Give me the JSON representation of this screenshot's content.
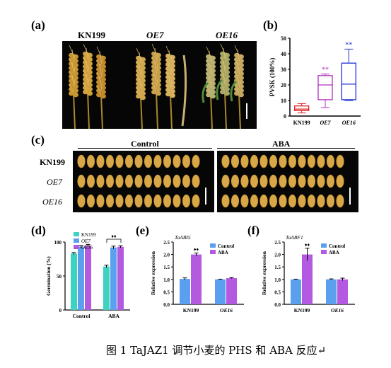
{
  "panels": {
    "a": {
      "label": "(a)",
      "headers": [
        "KN199",
        "OE7",
        "OE16"
      ]
    },
    "b": {
      "label": "(b)",
      "ylabel": "PVSK (100%)",
      "yticks": [
        "0",
        "10",
        "20",
        "30",
        "40",
        "50"
      ],
      "categories": [
        "KN199",
        "OE7",
        "OE16"
      ],
      "sig": [
        "",
        "**",
        "**"
      ]
    },
    "c": {
      "label": "(c)",
      "conditions": [
        "Control",
        "ABA"
      ],
      "rows": [
        "KN199",
        "OE7",
        "OE16"
      ]
    },
    "d": {
      "label": "(d)",
      "ylabel": "Germination (%)",
      "yticks": [
        "0",
        "50",
        "100"
      ],
      "groups": [
        "Control",
        "ABA"
      ],
      "legend": [
        "KN199",
        "OE7",
        "OE16"
      ],
      "sig": "♦♦"
    },
    "e": {
      "label": "(e)",
      "gene": "TaABI5",
      "ylabel": "Relative expression",
      "yticks": [
        "0.0",
        "0.5",
        "1.0",
        "1.5",
        "2.0",
        "2.5"
      ],
      "groups": [
        "KN199",
        "OE16"
      ],
      "legend": [
        "Control",
        "ABA"
      ],
      "sig": "♦♦"
    },
    "f": {
      "label": "(f)",
      "gene": "TaABF1",
      "ylabel": "Relative expression",
      "yticks": [
        "0.0",
        "0.5",
        "1.0",
        "1.5",
        "2.0",
        "2.5"
      ],
      "groups": [
        "KN199",
        "OE16"
      ],
      "legend": [
        "Control",
        "ABA"
      ],
      "sig": "♦♦"
    }
  },
  "caption": "图 1 TaJAZ1 调节小麦的 PHS 和 ABA 反应↵",
  "chart_data": [
    {
      "type": "box",
      "id": "b",
      "ylabel": "PVSK (100%)",
      "ylim": [
        0,
        50
      ],
      "categories": [
        "KN199",
        "OE7",
        "OE16"
      ],
      "boxes": [
        {
          "min": 2,
          "q1": 3.5,
          "median": 4.5,
          "q3": 6.5,
          "max": 8
        },
        {
          "min": 5.5,
          "q1": 10.5,
          "median": 20,
          "q3": 26,
          "max": 27
        },
        {
          "min": 10,
          "q1": 10.5,
          "median": 20.5,
          "q3": 34,
          "max": 43
        }
      ],
      "colors": [
        "#e02020",
        "#b030c0",
        "#2030d0"
      ]
    },
    {
      "type": "bar",
      "id": "d",
      "ylabel": "Germination (%)",
      "ylim": [
        0,
        100
      ],
      "categories": [
        "Control",
        "ABA"
      ],
      "series": [
        {
          "name": "KN199",
          "values": [
            83,
            64
          ],
          "errors": [
            1.5,
            2
          ],
          "color": "#3ed3c0"
        },
        {
          "name": "OE7",
          "values": [
            93,
            92
          ],
          "errors": [
            2,
            2
          ],
          "color": "#5aa0ee"
        },
        {
          "name": "OE16",
          "values": [
            95,
            93
          ],
          "errors": [
            1.5,
            1.5
          ],
          "color": "#b45ae0"
        }
      ]
    },
    {
      "type": "bar",
      "id": "e",
      "ylabel": "Relative expression",
      "ylim": [
        0,
        2.5
      ],
      "categories": [
        "KN199",
        "OE16"
      ],
      "series": [
        {
          "name": "Control",
          "values": [
            1.02,
            1.0
          ],
          "errors": [
            0.04,
            0.01
          ],
          "color": "#5aa0ee"
        },
        {
          "name": "ABA",
          "values": [
            2.0,
            1.05
          ],
          "errors": [
            0.06,
            0.02
          ],
          "color": "#b45ae0"
        }
      ]
    },
    {
      "type": "bar",
      "id": "f",
      "ylabel": "Relative expression",
      "ylim": [
        0,
        2.5
      ],
      "categories": [
        "KN199",
        "OE16"
      ],
      "series": [
        {
          "name": "Control",
          "values": [
            1.0,
            1.0
          ],
          "errors": [
            0.01,
            0.02
          ],
          "color": "#5aa0ee"
        },
        {
          "name": "ABA",
          "values": [
            2.0,
            1.0
          ],
          "errors": [
            0.25,
            0.05
          ],
          "color": "#b45ae0"
        }
      ]
    }
  ]
}
